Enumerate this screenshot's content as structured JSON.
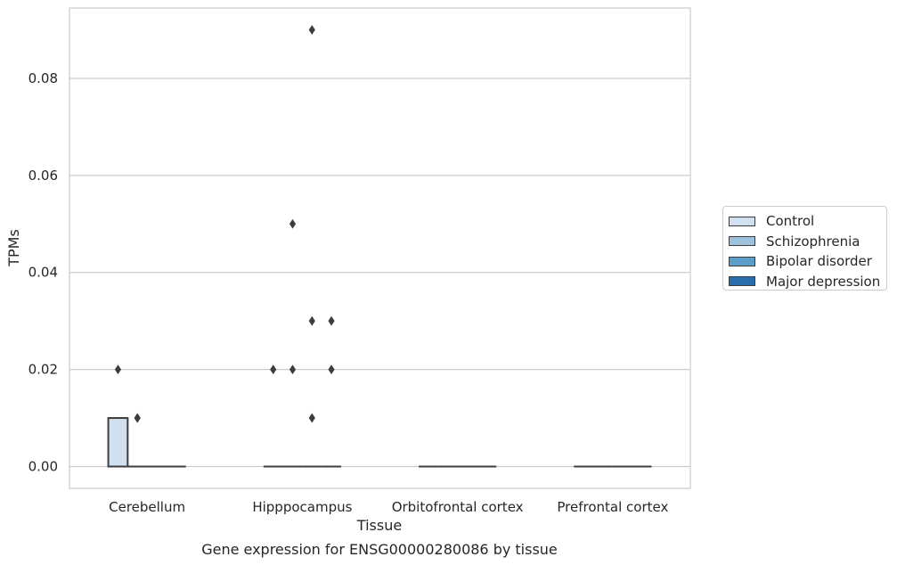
{
  "chart_data": {
    "type": "box",
    "title": "Gene expression for ENSG00000280086 by tissue",
    "xlabel": "Tissue",
    "ylabel": "TPMs",
    "ylim": [
      -0.0045,
      0.0945
    ],
    "yticks": [
      0.0,
      0.02,
      0.04,
      0.06,
      0.08
    ],
    "ytick_labels": [
      "0.00",
      "0.02",
      "0.04",
      "0.06",
      "0.08"
    ],
    "categories": [
      "Cerebellum",
      "Hipppocampus",
      "Orbitofrontal cortex",
      "Prefrontal cortex"
    ],
    "grid": true,
    "legend_position": "right",
    "series": [
      {
        "name": "Control",
        "color": "#d1e0ef",
        "boxes": [
          {
            "q1": 0.0,
            "median": 0.0,
            "q3": 0.01,
            "whisker_low": 0.0,
            "whisker_high": 0.01,
            "outliers": [
              0.02
            ]
          },
          {
            "q1": 0.0,
            "median": 0.0,
            "q3": 0.0,
            "whisker_low": 0.0,
            "whisker_high": 0.0,
            "outliers": [
              0.02
            ]
          },
          {
            "q1": 0.0,
            "median": 0.0,
            "q3": 0.0,
            "whisker_low": 0.0,
            "whisker_high": 0.0,
            "outliers": []
          },
          {
            "q1": 0.0,
            "median": 0.0,
            "q3": 0.0,
            "whisker_low": 0.0,
            "whisker_high": 0.0,
            "outliers": []
          }
        ]
      },
      {
        "name": "Schizophrenia",
        "color": "#9dc2dd",
        "boxes": [
          {
            "q1": 0.0,
            "median": 0.0,
            "q3": 0.0,
            "whisker_low": 0.0,
            "whisker_high": 0.0,
            "outliers": [
              0.01,
              0.01
            ]
          },
          {
            "q1": 0.0,
            "median": 0.0,
            "q3": 0.0,
            "whisker_low": 0.0,
            "whisker_high": 0.0,
            "outliers": [
              0.05,
              0.02
            ]
          },
          {
            "q1": 0.0,
            "median": 0.0,
            "q3": 0.0,
            "whisker_low": 0.0,
            "whisker_high": 0.0,
            "outliers": []
          },
          {
            "q1": 0.0,
            "median": 0.0,
            "q3": 0.0,
            "whisker_low": 0.0,
            "whisker_high": 0.0,
            "outliers": []
          }
        ]
      },
      {
        "name": "Bipolar disorder",
        "color": "#5c9ec9",
        "boxes": [
          {
            "q1": 0.0,
            "median": 0.0,
            "q3": 0.0,
            "whisker_low": 0.0,
            "whisker_high": 0.0,
            "outliers": []
          },
          {
            "q1": 0.0,
            "median": 0.0,
            "q3": 0.0,
            "whisker_low": 0.0,
            "whisker_high": 0.0,
            "outliers": [
              0.09,
              0.03,
              0.01
            ]
          },
          {
            "q1": 0.0,
            "median": 0.0,
            "q3": 0.0,
            "whisker_low": 0.0,
            "whisker_high": 0.0,
            "outliers": []
          },
          {
            "q1": 0.0,
            "median": 0.0,
            "q3": 0.0,
            "whisker_low": 0.0,
            "whisker_high": 0.0,
            "outliers": []
          }
        ]
      },
      {
        "name": "Major depression",
        "color": "#2a6dad",
        "boxes": [
          {
            "q1": 0.0,
            "median": 0.0,
            "q3": 0.0,
            "whisker_low": 0.0,
            "whisker_high": 0.0,
            "outliers": []
          },
          {
            "q1": 0.0,
            "median": 0.0,
            "q3": 0.0,
            "whisker_low": 0.0,
            "whisker_high": 0.0,
            "outliers": [
              0.03,
              0.02
            ]
          },
          {
            "q1": 0.0,
            "median": 0.0,
            "q3": 0.0,
            "whisker_low": 0.0,
            "whisker_high": 0.0,
            "outliers": []
          },
          {
            "q1": 0.0,
            "median": 0.0,
            "q3": 0.0,
            "whisker_low": 0.0,
            "whisker_high": 0.0,
            "outliers": []
          }
        ]
      }
    ]
  }
}
